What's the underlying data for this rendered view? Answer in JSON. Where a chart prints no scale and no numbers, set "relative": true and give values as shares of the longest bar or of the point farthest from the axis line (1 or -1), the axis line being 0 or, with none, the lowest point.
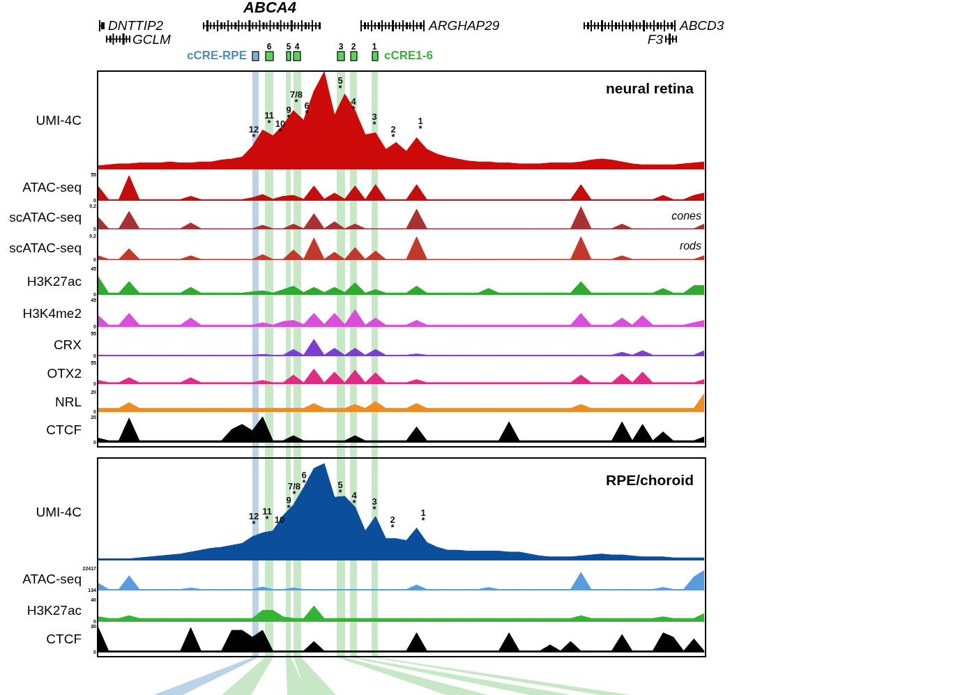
{
  "chart_data": [
    {
      "type": "other",
      "annotations": [
        "ABCA4",
        "DNTTIP2",
        "GCLM",
        "ARGHAP29",
        "ABCD3",
        "F3",
        "cCRE-RPE",
        "6",
        "5",
        "4",
        "3",
        "2",
        "1",
        "cCRE1-6"
      ]
    },
    {
      "type": "area",
      "relative": true,
      "title": "neural retina",
      "ylabel": "UMI-4C",
      "tick_labels": false,
      "annotations": [
        "12\n*",
        "11\n*",
        "10\n*",
        "9\n*",
        "7/8\n*",
        "6\n*",
        "5\n*",
        "4\n*",
        "3\n*",
        "2\n*",
        "1\n*"
      ],
      "categories": [
        null,
        null,
        null,
        null,
        null,
        null,
        null,
        null,
        null,
        null,
        null,
        null,
        null,
        null,
        null,
        null,
        null,
        null,
        null,
        null,
        null,
        null,
        null,
        null,
        null,
        null,
        null,
        null,
        null,
        null,
        null,
        null,
        null,
        null,
        null,
        null,
        null,
        null,
        null,
        null,
        null,
        null,
        null,
        null,
        null,
        null,
        null,
        null,
        null,
        null,
        null,
        null,
        null,
        null,
        null,
        null,
        null,
        null,
        null,
        null
      ],
      "series": [
        {
          "color": "#cc0a0a",
          "values": [
            0.03,
            0.04,
            0.05,
            0.05,
            0.06,
            0.06,
            0.06,
            0.07,
            0.06,
            0.06,
            0.07,
            0.07,
            0.09,
            0.1,
            0.12,
            0.23,
            0.4,
            0.34,
            0.45,
            0.6,
            0.5,
            0.8,
            1,
            0.55,
            0.77,
            0.6,
            0.35,
            0.37,
            0.2,
            0.27,
            0.18,
            0.32,
            0.2,
            0.15,
            0.12,
            0.1,
            0.08,
            0.07,
            0.07,
            0.06,
            0.06,
            0.05,
            0.05,
            0.05,
            0.06,
            0.06,
            0.06,
            0.07,
            0.09,
            0.1,
            0.09,
            0.07,
            0.05,
            0.04,
            0.04,
            0.04,
            0.04,
            0.05,
            0.06,
            0.07
          ]
        }
      ]
    },
    {
      "type": "area",
      "ylabel": "ATAC-seq",
      "tick_labels": "y",
      "ylim": [
        0,
        55
      ],
      "yticks": [
        0,
        55
      ],
      "categories": [
        null,
        null,
        null,
        null,
        null,
        null,
        null,
        null,
        null,
        null,
        null,
        null,
        null,
        null,
        null,
        null,
        null,
        null,
        null,
        null,
        null,
        null,
        null,
        null,
        null,
        null,
        null,
        null,
        null,
        null,
        null,
        null,
        null,
        null,
        null,
        null,
        null,
        null,
        null,
        null,
        null,
        null,
        null,
        null,
        null,
        null,
        null,
        null,
        null,
        null,
        null,
        null,
        null,
        null,
        null,
        null,
        null,
        null,
        null,
        null
      ],
      "series": [
        {
          "color": "#c40d0d",
          "values": [
            29,
            1,
            1,
            52,
            1,
            1,
            1,
            1,
            1,
            8,
            1,
            1,
            1,
            1,
            1,
            5,
            12,
            2,
            8,
            10,
            2,
            30,
            2,
            15,
            2,
            30,
            1,
            33,
            1,
            1,
            1,
            33,
            1,
            1,
            1,
            1,
            1,
            1,
            1,
            1,
            1,
            1,
            1,
            1,
            1,
            1,
            1,
            33,
            1,
            1,
            1,
            1,
            1,
            1,
            1,
            10,
            1,
            1,
            10,
            15
          ]
        }
      ]
    },
    {
      "type": "area",
      "ylabel": "scATAC-seq",
      "tick_labels": "y",
      "ylim": [
        0,
        0.2
      ],
      "yticks": [
        0,
        0.2
      ],
      "annotations": [
        "cones"
      ],
      "categories": [
        null,
        null,
        null,
        null,
        null,
        null,
        null,
        null,
        null,
        null,
        null,
        null,
        null,
        null,
        null,
        null,
        null,
        null,
        null,
        null,
        null,
        null,
        null,
        null,
        null,
        null,
        null,
        null,
        null,
        null,
        null,
        null,
        null,
        null,
        null,
        null,
        null,
        null,
        null,
        null,
        null,
        null,
        null,
        null,
        null,
        null,
        null,
        null,
        null,
        null,
        null,
        null,
        null,
        null,
        null,
        null,
        null,
        null,
        null,
        null
      ],
      "series": [
        {
          "color": "#a83232",
          "values": [
            0.1,
            0,
            0,
            0.15,
            0,
            0,
            0,
            0,
            0,
            0.05,
            0,
            0,
            0,
            0,
            0,
            0,
            0.03,
            0,
            0,
            0.04,
            0,
            0.13,
            0,
            0.06,
            0,
            0.04,
            0,
            0,
            0,
            0,
            0,
            0.17,
            0,
            0,
            0,
            0,
            0,
            0,
            0,
            0,
            0,
            0,
            0,
            0,
            0,
            0,
            0,
            0.19,
            0,
            0,
            0,
            0.04,
            0,
            0,
            0,
            0,
            0,
            0,
            0,
            0.04
          ]
        }
      ]
    },
    {
      "type": "area",
      "ylabel": "scATAC-seq",
      "tick_labels": "y",
      "ylim": [
        0,
        0.2
      ],
      "yticks": [
        0,
        0.2
      ],
      "annotations": [
        "rods"
      ],
      "categories": [
        null,
        null,
        null,
        null,
        null,
        null,
        null,
        null,
        null,
        null,
        null,
        null,
        null,
        null,
        null,
        null,
        null,
        null,
        null,
        null,
        null,
        null,
        null,
        null,
        null,
        null,
        null,
        null,
        null,
        null,
        null,
        null,
        null,
        null,
        null,
        null,
        null,
        null,
        null,
        null,
        null,
        null,
        null,
        null,
        null,
        null,
        null,
        null,
        null,
        null,
        null,
        null,
        null,
        null,
        null,
        null,
        null,
        null,
        null,
        null
      ],
      "series": [
        {
          "color": "#c0392b",
          "values": [
            0.03,
            0,
            0,
            0.09,
            0,
            0,
            0,
            0,
            0,
            0.03,
            0,
            0,
            0,
            0,
            0,
            0,
            0.04,
            0,
            0,
            0.08,
            0,
            0.18,
            0,
            0.06,
            0,
            0.1,
            0,
            0.07,
            0,
            0,
            0,
            0.19,
            0,
            0,
            0,
            0,
            0,
            0,
            0,
            0,
            0,
            0,
            0,
            0,
            0,
            0,
            0,
            0.19,
            0,
            0,
            0,
            0.03,
            0,
            0,
            0,
            0,
            0,
            0,
            0,
            0.03
          ]
        }
      ]
    },
    {
      "type": "area",
      "ylabel": "H3K27ac",
      "tick_labels": "y",
      "ylim": [
        0,
        45
      ],
      "yticks": [
        0,
        45
      ],
      "categories": [
        null,
        null,
        null,
        null,
        null,
        null,
        null,
        null,
        null,
        null,
        null,
        null,
        null,
        null,
        null,
        null,
        null,
        null,
        null,
        null,
        null,
        null,
        null,
        null,
        null,
        null,
        null,
        null,
        null,
        null,
        null,
        null,
        null,
        null,
        null,
        null,
        null,
        null,
        null,
        null,
        null,
        null,
        null,
        null,
        null,
        null,
        null,
        null,
        null,
        null,
        null,
        null,
        null,
        null,
        null,
        null,
        null,
        null,
        null,
        null
      ],
      "series": [
        {
          "color": "#2eaa2e",
          "values": [
            30,
            2,
            2,
            22,
            2,
            2,
            2,
            2,
            2,
            12,
            2,
            2,
            2,
            2,
            2,
            4,
            6,
            2,
            8,
            14,
            3,
            12,
            3,
            12,
            3,
            20,
            2,
            8,
            2,
            2,
            2,
            14,
            2,
            2,
            2,
            2,
            2,
            2,
            10,
            2,
            2,
            2,
            2,
            2,
            2,
            2,
            2,
            22,
            2,
            2,
            2,
            2,
            2,
            2,
            2,
            10,
            2,
            2,
            15,
            15
          ]
        }
      ]
    },
    {
      "type": "area",
      "ylabel": "H3K4me2",
      "tick_labels": "y",
      "ylim": [
        0,
        45
      ],
      "yticks": [
        0,
        45
      ],
      "categories": [
        null,
        null,
        null,
        null,
        null,
        null,
        null,
        null,
        null,
        null,
        null,
        null,
        null,
        null,
        null,
        null,
        null,
        null,
        null,
        null,
        null,
        null,
        null,
        null,
        null,
        null,
        null,
        null,
        null,
        null,
        null,
        null,
        null,
        null,
        null,
        null,
        null,
        null,
        null,
        null,
        null,
        null,
        null,
        null,
        null,
        null,
        null,
        null,
        null,
        null,
        null,
        null,
        null,
        null,
        null,
        null,
        null,
        null,
        null,
        null
      ],
      "series": [
        {
          "color": "#d94fd9",
          "values": [
            18,
            2,
            2,
            22,
            2,
            2,
            2,
            2,
            2,
            14,
            2,
            2,
            2,
            2,
            2,
            2,
            6,
            2,
            8,
            10,
            3,
            22,
            3,
            22,
            3,
            28,
            2,
            14,
            2,
            2,
            2,
            10,
            2,
            2,
            2,
            2,
            2,
            2,
            2,
            2,
            2,
            2,
            2,
            2,
            2,
            2,
            2,
            22,
            2,
            2,
            2,
            14,
            2,
            18,
            2,
            2,
            2,
            2,
            6,
            10
          ]
        }
      ]
    },
    {
      "type": "area",
      "ylabel": "CRX",
      "tick_labels": "y",
      "ylim": [
        0,
        55
      ],
      "yticks": [
        0,
        55
      ],
      "categories": [
        null,
        null,
        null,
        null,
        null,
        null,
        null,
        null,
        null,
        null,
        null,
        null,
        null,
        null,
        null,
        null,
        null,
        null,
        null,
        null,
        null,
        null,
        null,
        null,
        null,
        null,
        null,
        null,
        null,
        null,
        null,
        null,
        null,
        null,
        null,
        null,
        null,
        null,
        null,
        null,
        null,
        null,
        null,
        null,
        null,
        null,
        null,
        null,
        null,
        null,
        null,
        null,
        null,
        null,
        null,
        null,
        null,
        null,
        null,
        null
      ],
      "series": [
        {
          "color": "#7a3fd0",
          "values": [
            1,
            1,
            1,
            1,
            1,
            1,
            1,
            1,
            1,
            1,
            1,
            1,
            1,
            1,
            1,
            1,
            3,
            1,
            1,
            15,
            1,
            40,
            1,
            18,
            1,
            18,
            1,
            15,
            1,
            1,
            1,
            4,
            1,
            1,
            1,
            1,
            1,
            1,
            1,
            1,
            1,
            1,
            1,
            1,
            1,
            1,
            1,
            1,
            1,
            1,
            1,
            8,
            1,
            12,
            1,
            1,
            1,
            1,
            1,
            12
          ]
        }
      ]
    },
    {
      "type": "area",
      "ylabel": "OTX2",
      "tick_labels": "y",
      "ylim": [
        0,
        55
      ],
      "yticks": [
        0,
        55
      ],
      "categories": [
        null,
        null,
        null,
        null,
        null,
        null,
        null,
        null,
        null,
        null,
        null,
        null,
        null,
        null,
        null,
        null,
        null,
        null,
        null,
        null,
        null,
        null,
        null,
        null,
        null,
        null,
        null,
        null,
        null,
        null,
        null,
        null,
        null,
        null,
        null,
        null,
        null,
        null,
        null,
        null,
        null,
        null,
        null,
        null,
        null,
        null,
        null,
        null,
        null,
        null,
        null,
        null,
        null,
        null,
        null,
        null,
        null,
        null,
        null,
        null
      ],
      "series": [
        {
          "color": "#e02c86",
          "values": [
            8,
            2,
            2,
            15,
            2,
            2,
            2,
            2,
            2,
            15,
            2,
            2,
            2,
            2,
            2,
            2,
            8,
            2,
            2,
            22,
            2,
            38,
            2,
            30,
            2,
            35,
            2,
            28,
            2,
            2,
            2,
            10,
            2,
            2,
            2,
            2,
            2,
            2,
            2,
            2,
            2,
            2,
            2,
            2,
            2,
            2,
            2,
            22,
            2,
            2,
            2,
            25,
            2,
            30,
            2,
            2,
            2,
            2,
            2,
            10
          ]
        }
      ]
    },
    {
      "type": "area",
      "ylabel": "NRL",
      "tick_labels": "y",
      "ylim": [
        0,
        20
      ],
      "yticks": [
        0,
        20
      ],
      "categories": [
        null,
        null,
        null,
        null,
        null,
        null,
        null,
        null,
        null,
        null,
        null,
        null,
        null,
        null,
        null,
        null,
        null,
        null,
        null,
        null,
        null,
        null,
        null,
        null,
        null,
        null,
        null,
        null,
        null,
        null,
        null,
        null,
        null,
        null,
        null,
        null,
        null,
        null,
        null,
        null,
        null,
        null,
        null,
        null,
        null,
        null,
        null,
        null,
        null,
        null,
        null,
        null,
        null,
        null,
        null,
        null,
        null,
        null,
        null,
        null
      ],
      "series": [
        {
          "color": "#f08c1e",
          "values": [
            3,
            3,
            3,
            9,
            3,
            3,
            3,
            3,
            3,
            3,
            3,
            3,
            3,
            3,
            3,
            3,
            3,
            3,
            3,
            3,
            3,
            8,
            3,
            3,
            3,
            7,
            3,
            10,
            3,
            3,
            3,
            8,
            3,
            3,
            3,
            3,
            3,
            3,
            3,
            3,
            3,
            3,
            3,
            3,
            3,
            3,
            3,
            7,
            3,
            3,
            3,
            3,
            3,
            3,
            3,
            3,
            3,
            3,
            3,
            18
          ]
        }
      ]
    },
    {
      "type": "area",
      "ylabel": "CTCF",
      "tick_labels": "y",
      "ylim": [
        0,
        20
      ],
      "yticks": [
        0,
        20
      ],
      "categories": [
        null,
        null,
        null,
        null,
        null,
        null,
        null,
        null,
        null,
        null,
        null,
        null,
        null,
        null,
        null,
        null,
        null,
        null,
        null,
        null,
        null,
        null,
        null,
        null,
        null,
        null,
        null,
        null,
        null,
        null,
        null,
        null,
        null,
        null,
        null,
        null,
        null,
        null,
        null,
        null,
        null,
        null,
        null,
        null,
        null,
        null,
        null,
        null,
        null,
        null,
        null,
        null,
        null,
        null,
        null,
        null,
        null,
        null,
        null,
        null
      ],
      "series": [
        {
          "color": "#000000",
          "values": [
            3,
            1,
            1,
            19,
            1,
            1,
            1,
            1,
            1,
            1,
            1,
            1,
            1,
            10,
            14,
            9,
            20,
            1,
            1,
            5,
            1,
            1,
            1,
            1,
            1,
            5,
            1,
            1,
            1,
            1,
            1,
            12,
            1,
            1,
            1,
            1,
            1,
            1,
            1,
            1,
            16,
            1,
            1,
            1,
            1,
            1,
            1,
            1,
            1,
            1,
            1,
            16,
            1,
            14,
            1,
            8,
            1,
            1,
            1,
            4
          ]
        }
      ]
    },
    {
      "type": "area",
      "relative": true,
      "title": "RPE/choroid",
      "ylabel": "UMI-4C",
      "tick_labels": false,
      "annotations": [
        "12\n*",
        "11\n*",
        "10",
        "9\n*",
        "7/8\n*",
        "6\n*",
        "5\n*",
        "4\n*",
        "3\n*",
        "2\n*",
        "1\n*"
      ],
      "categories": [
        null,
        null,
        null,
        null,
        null,
        null,
        null,
        null,
        null,
        null,
        null,
        null,
        null,
        null,
        null,
        null,
        null,
        null,
        null,
        null,
        null,
        null,
        null,
        null,
        null,
        null,
        null,
        null,
        null,
        null,
        null,
        null,
        null,
        null,
        null,
        null,
        null,
        null,
        null,
        null,
        null,
        null,
        null,
        null,
        null,
        null,
        null,
        null,
        null,
        null,
        null,
        null,
        null,
        null,
        null,
        null,
        null,
        null,
        null,
        null
      ],
      "series": [
        {
          "color": "#0b4f9c",
          "values": [
            0.01,
            0.01,
            0.01,
            0.01,
            0.02,
            0.03,
            0.04,
            0.05,
            0.06,
            0.08,
            0.1,
            0.12,
            0.13,
            0.15,
            0.17,
            0.24,
            0.28,
            0.3,
            0.46,
            0.57,
            0.75,
            0.95,
            1,
            0.65,
            0.66,
            0.55,
            0.3,
            0.45,
            0.22,
            0.22,
            0.2,
            0.33,
            0.18,
            0.13,
            0.1,
            0.1,
            0.09,
            0.09,
            0.09,
            0.09,
            0.08,
            0.08,
            0.06,
            0.04,
            0.03,
            0.03,
            0.03,
            0.04,
            0.05,
            0.06,
            0.05,
            0.05,
            0.04,
            0.03,
            0.03,
            0.03,
            0.02,
            0.02,
            0.02,
            0.02
          ]
        }
      ]
    },
    {
      "type": "area",
      "ylabel": "ATAC-seq",
      "tick_labels": "y",
      "ylim": [
        134,
        22417
      ],
      "yticks": [
        134,
        {
          "value": 22417,
          "label": "22417"
        }
      ],
      "categories": [
        null,
        null,
        null,
        null,
        null,
        null,
        null,
        null,
        null,
        null,
        null,
        null,
        null,
        null,
        null,
        null,
        null,
        null,
        null,
        null,
        null,
        null,
        null,
        null,
        null,
        null,
        null,
        null,
        null,
        null,
        null,
        null,
        null,
        null,
        null,
        null,
        null,
        null,
        null,
        null,
        null,
        null,
        null,
        null,
        null,
        null,
        null,
        null,
        null,
        null,
        null,
        null,
        null,
        null,
        null,
        null,
        null,
        null,
        null,
        null
      ],
      "series": [
        {
          "color": "#5a9be0",
          "values": [
            6800,
            500,
            500,
            14600,
            500,
            500,
            500,
            500,
            500,
            2000,
            500,
            500,
            500,
            500,
            500,
            500,
            3000,
            500,
            500,
            2000,
            500,
            500,
            500,
            500,
            500,
            500,
            500,
            500,
            500,
            500,
            500,
            5000,
            500,
            500,
            500,
            500,
            500,
            500,
            2500,
            500,
            500,
            500,
            500,
            500,
            500,
            500,
            500,
            18000,
            500,
            500,
            500,
            500,
            500,
            500,
            500,
            2500,
            500,
            500,
            13500,
            20000
          ]
        }
      ]
    },
    {
      "type": "area",
      "ylabel": "H3K27ac",
      "tick_labels": "y",
      "ylim": [
        0,
        40
      ],
      "yticks": [
        0,
        40
      ],
      "categories": [
        null,
        null,
        null,
        null,
        null,
        null,
        null,
        null,
        null,
        null,
        null,
        null,
        null,
        null,
        null,
        null,
        null,
        null,
        null,
        null,
        null,
        null,
        null,
        null,
        null,
        null,
        null,
        null,
        null,
        null,
        null,
        null,
        null,
        null,
        null,
        null,
        null,
        null,
        null,
        null,
        null,
        null,
        null,
        null,
        null,
        null,
        null,
        null,
        null,
        null,
        null,
        null,
        null,
        null,
        null,
        null,
        null,
        null,
        null,
        null
      ],
      "series": [
        {
          "color": "#33b533",
          "values": [
            8,
            5,
            5,
            10,
            5,
            5,
            5,
            5,
            5,
            5,
            5,
            5,
            5,
            5,
            5,
            5,
            20,
            20,
            8,
            5,
            5,
            28,
            5,
            5,
            5,
            5,
            5,
            5,
            5,
            5,
            5,
            5,
            5,
            5,
            5,
            5,
            5,
            5,
            5,
            5,
            5,
            5,
            5,
            5,
            5,
            5,
            5,
            10,
            5,
            5,
            5,
            5,
            5,
            5,
            5,
            8,
            5,
            5,
            5,
            14
          ]
        }
      ]
    },
    {
      "type": "area",
      "ylabel": "CTCF",
      "tick_labels": "y",
      "ylim": [
        0,
        30
      ],
      "yticks": [
        0,
        30
      ],
      "categories": [
        null,
        null,
        null,
        null,
        null,
        null,
        null,
        null,
        null,
        null,
        null,
        null,
        null,
        null,
        null,
        null,
        null,
        null,
        null,
        null,
        null,
        null,
        null,
        null,
        null,
        null,
        null,
        null,
        null,
        null,
        null,
        null,
        null,
        null,
        null,
        null,
        null,
        null,
        null,
        null,
        null,
        null,
        null,
        null,
        null,
        null,
        null,
        null,
        null,
        null,
        null,
        null,
        null,
        null,
        null,
        null,
        null,
        null,
        null,
        null
      ],
      "series": [
        {
          "color": "#000000",
          "values": [
            28,
            1,
            1,
            1,
            1,
            1,
            1,
            1,
            1,
            28,
            1,
            1,
            1,
            25,
            25,
            17,
            25,
            1,
            1,
            1,
            1,
            12,
            1,
            1,
            1,
            1,
            1,
            1,
            1,
            1,
            1,
            22,
            1,
            1,
            1,
            1,
            1,
            1,
            1,
            1,
            22,
            1,
            1,
            1,
            8,
            1,
            12,
            1,
            1,
            1,
            1,
            20,
            1,
            1,
            1,
            22,
            17,
            1,
            15,
            1
          ]
        }
      ]
    }
  ]
}
